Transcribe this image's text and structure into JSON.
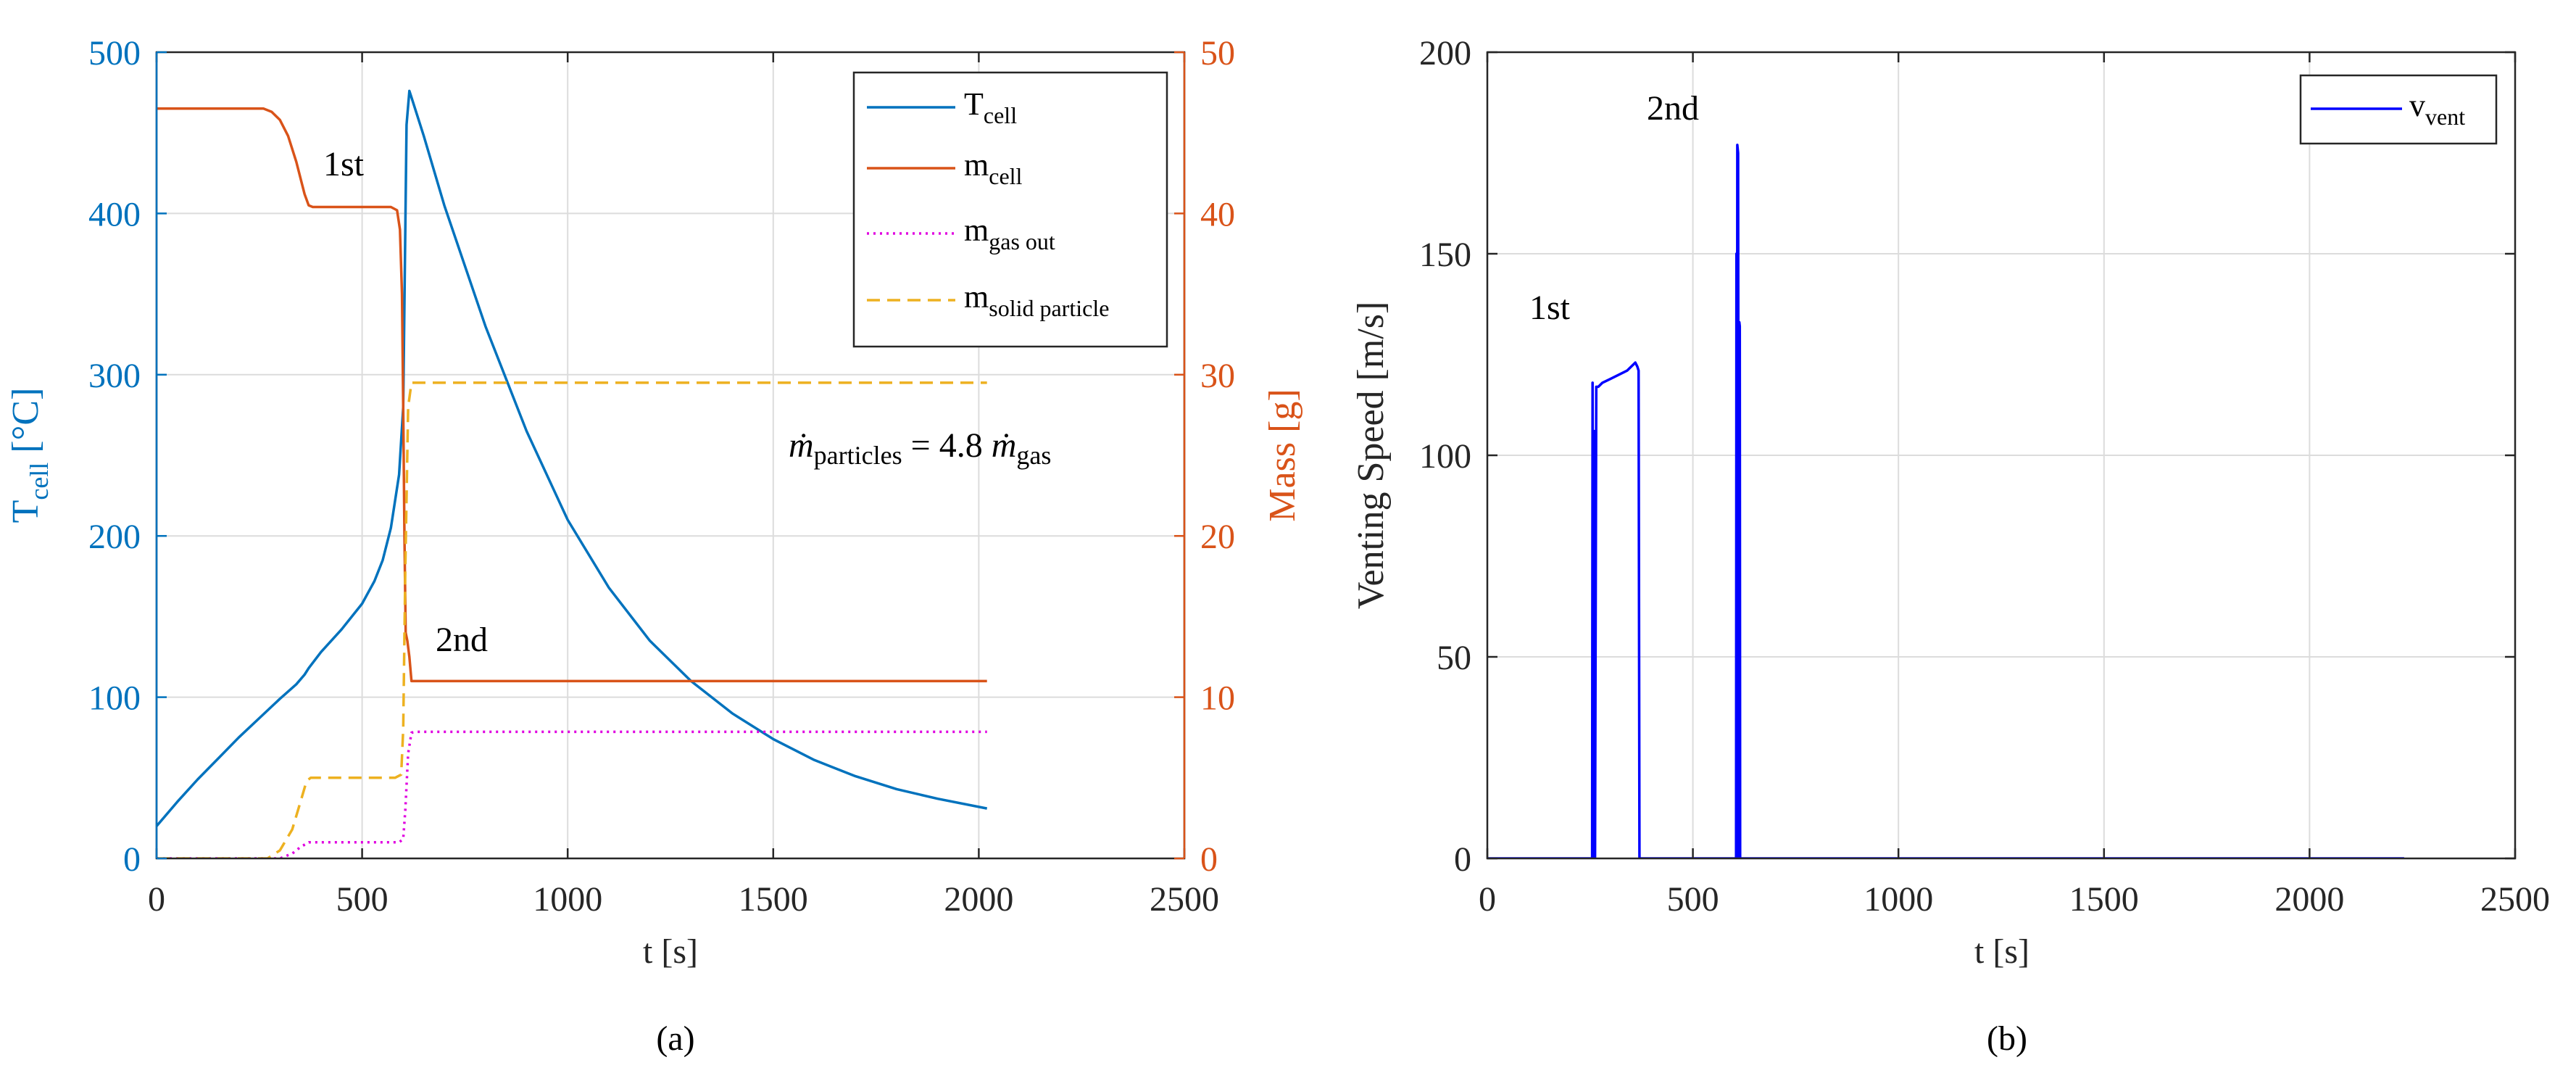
{
  "chart_data": [
    {
      "panel": "(a)",
      "type": "line",
      "xlabel": "t [s]",
      "xlim": [
        0,
        2500
      ],
      "xticks": [
        0,
        500,
        1000,
        1500,
        2000,
        2500
      ],
      "y_left": {
        "label_main": "T",
        "label_sub": "cell",
        "label_unit": " [°C]",
        "ylim": [
          0,
          500
        ],
        "ticks": [
          0,
          100,
          200,
          300,
          400,
          500
        ],
        "color": "#0072BD"
      },
      "y_right": {
        "label": "Mass [g]",
        "ylim": [
          0,
          50
        ],
        "ticks": [
          0,
          10,
          20,
          30,
          40,
          50
        ],
        "color": "#D95319"
      },
      "grid": true,
      "legend_position": "top-right",
      "series": [
        {
          "name_main": "T",
          "name_sub": "cell",
          "axis": "left",
          "color": "#0072BD",
          "style": "solid",
          "x": [
            0,
            50,
            100,
            150,
            200,
            250,
            300,
            340,
            360,
            370,
            400,
            450,
            500,
            530,
            550,
            570,
            590,
            600,
            608,
            615,
            620,
            650,
            700,
            800,
            900,
            1000,
            1100,
            1200,
            1300,
            1400,
            1500,
            1600,
            1700,
            1800,
            1900,
            2020
          ],
          "y": [
            20,
            35,
            49,
            62,
            75,
            87,
            99,
            108,
            114,
            118,
            128,
            142,
            158,
            172,
            185,
            205,
            238,
            280,
            455,
            476,
            472,
            448,
            405,
            330,
            265,
            210,
            168,
            135,
            110,
            90,
            74,
            61,
            51,
            43,
            37,
            31
          ]
        },
        {
          "name_main": "m",
          "name_sub": "cell",
          "axis": "right",
          "color": "#D95319",
          "style": "solid",
          "x": [
            0,
            260,
            280,
            300,
            320,
            340,
            360,
            370,
            380,
            570,
            585,
            592,
            597,
            600,
            603,
            606,
            610,
            615,
            620,
            2020
          ],
          "y": [
            46.5,
            46.5,
            46.3,
            45.8,
            44.8,
            43.2,
            41.2,
            40.5,
            40.4,
            40.4,
            40.2,
            39,
            35,
            28,
            20,
            14,
            13.5,
            12.5,
            11,
            11
          ]
        },
        {
          "name_main": "m",
          "name_sub": "gas out",
          "axis": "right",
          "color": "#E000E0",
          "style": "dotted",
          "x": [
            0,
            300,
            330,
            350,
            370,
            380,
            590,
            600,
            605,
            612,
            620,
            630,
            2020
          ],
          "y": [
            0,
            0,
            0.3,
            0.7,
            1,
            1,
            1,
            1.2,
            3,
            6.5,
            7.8,
            7.85,
            7.85
          ]
        },
        {
          "name_main": "m",
          "name_sub": "solid particle",
          "axis": "right",
          "color": "#EDB120",
          "style": "dashed",
          "x": [
            0,
            270,
            300,
            330,
            350,
            365,
            375,
            580,
            595,
            600,
            605,
            612,
            620,
            2020
          ],
          "y": [
            0,
            0,
            0.5,
            1.8,
            3.5,
            4.8,
            5,
            5,
            5.2,
            8,
            18,
            28,
            29.5,
            29.5
          ]
        }
      ],
      "annotations": {
        "first_event": "1st",
        "second_event": "2nd",
        "equation_lhs_sym": "ṁ",
        "equation_lhs_sub": "particles",
        "equation_mid": " = 4.8 ",
        "equation_rhs_sym": "ṁ",
        "equation_rhs_sub": "gas"
      }
    },
    {
      "panel": "(b)",
      "type": "line",
      "xlabel": "t [s]",
      "ylabel": "Venting Speed [m/s]",
      "xlim": [
        0,
        2500
      ],
      "ylim": [
        0,
        200
      ],
      "xticks": [
        0,
        500,
        1000,
        1500,
        2000,
        2500
      ],
      "yticks": [
        0,
        50,
        100,
        150,
        200
      ],
      "grid": true,
      "legend_position": "top-right",
      "series": [
        {
          "name_main": "v",
          "name_sub": "vent",
          "color": "#0000FF",
          "style": "solid",
          "x": [
            0,
            255,
            256,
            258,
            260,
            262,
            265,
            270,
            280,
            300,
            320,
            340,
            355,
            360,
            365,
            368,
            370,
            605,
            606,
            607,
            608,
            610,
            612,
            613,
            614,
            615,
            616,
            620,
            2230
          ],
          "y": [
            0,
            0,
            118,
            0,
            106,
            0,
            117,
            117,
            118,
            119,
            120,
            121,
            122.5,
            123,
            122,
            121,
            0,
            0,
            150,
            0,
            177,
            175,
            0,
            133,
            132,
            0,
            0,
            0,
            0
          ]
        }
      ],
      "annotations": {
        "first_event": "1st",
        "second_event": "2nd"
      }
    }
  ]
}
